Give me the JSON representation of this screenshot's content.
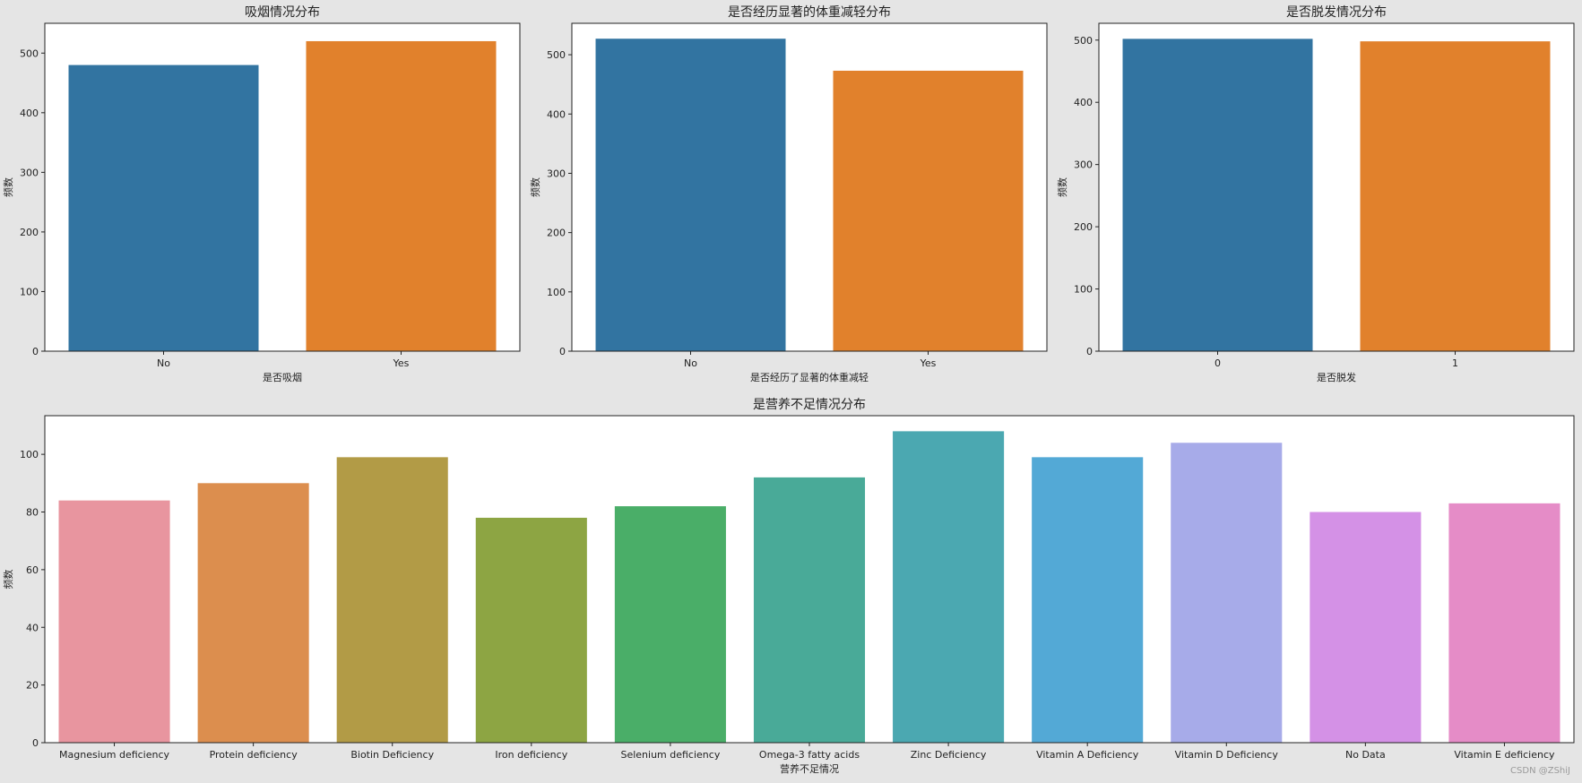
{
  "watermark": "CSDN @ZShiJ",
  "chart_data": [
    {
      "type": "bar",
      "title": "吸烟情况分布",
      "xlabel": "是否吸烟",
      "ylabel": "频数",
      "categories": [
        "No",
        "Yes"
      ],
      "values": [
        480,
        520
      ],
      "colors": [
        "#3274a1",
        "#e1812c"
      ],
      "ylim": [
        0,
        550
      ],
      "yticks": [
        0,
        100,
        200,
        300,
        400,
        500
      ],
      "grid": false
    },
    {
      "type": "bar",
      "title": "是否经历显著的体重减轻分布",
      "xlabel": "是否经历了显著的体重减轻",
      "ylabel": "频数",
      "categories": [
        "No",
        "Yes"
      ],
      "values": [
        527,
        473
      ],
      "colors": [
        "#3274a1",
        "#e1812c"
      ],
      "ylim": [
        0,
        553
      ],
      "yticks": [
        0,
        100,
        200,
        300,
        400,
        500
      ],
      "grid": false
    },
    {
      "type": "bar",
      "title": "是否脱发情况分布",
      "xlabel": "是否脱发",
      "ylabel": "频数",
      "categories": [
        "0",
        "1"
      ],
      "values": [
        502,
        498
      ],
      "colors": [
        "#3274a1",
        "#e1812c"
      ],
      "ylim": [
        0,
        527
      ],
      "yticks": [
        0,
        100,
        200,
        300,
        400,
        500
      ],
      "grid": false
    },
    {
      "type": "bar",
      "title": "是营养不足情况分布",
      "xlabel": "营养不足情况",
      "ylabel": "频数",
      "categories": [
        "Magnesium deficiency",
        "Protein deficiency",
        "Biotin Deficiency",
        "Iron deficiency",
        "Selenium deficiency",
        "Omega-3 fatty acids",
        "Zinc Deficiency",
        "Vitamin A Deficiency",
        "Vitamin D Deficiency",
        "No Data",
        "Vitamin E deficiency"
      ],
      "values": [
        84,
        90,
        99,
        78,
        82,
        92,
        108,
        99,
        104,
        80,
        83
      ],
      "colors": [
        "#e8959f",
        "#dc8e4e",
        "#b29b46",
        "#8da543",
        "#4aae68",
        "#49aa98",
        "#4ba8b1",
        "#53a9d6",
        "#a7abe9",
        "#d491e6",
        "#e58cc7"
      ],
      "ylim": [
        0,
        113.4
      ],
      "yticks": [
        0,
        20,
        40,
        60,
        80,
        100
      ],
      "grid": false
    }
  ]
}
